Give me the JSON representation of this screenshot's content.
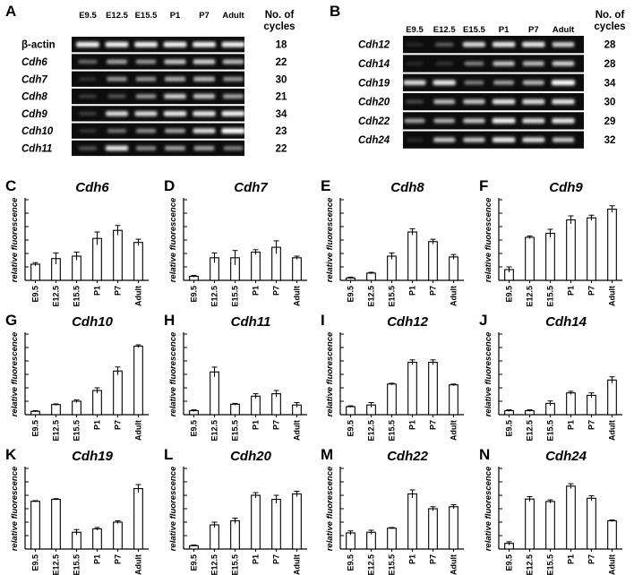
{
  "gels": [
    {
      "panel": "A",
      "lanes": [
        "E9.5",
        "E12.5",
        "E15.5",
        "P1",
        "P7",
        "Adult"
      ],
      "cycles_header": [
        "No. of",
        "cycles"
      ],
      "rows": [
        {
          "gene": "β-actin",
          "italic": false,
          "cycles": "18",
          "intensity": [
            0.95,
            0.95,
            0.95,
            0.95,
            0.95,
            0.95
          ]
        },
        {
          "gene": "Cdh6",
          "italic": true,
          "cycles": "22",
          "intensity": [
            0.35,
            0.6,
            0.55,
            0.75,
            0.8,
            0.7
          ]
        },
        {
          "gene": "Cdh7",
          "italic": true,
          "cycles": "30",
          "intensity": [
            0.1,
            0.55,
            0.55,
            0.65,
            0.7,
            0.55
          ]
        },
        {
          "gene": "Cdh8",
          "italic": true,
          "cycles": "21",
          "intensity": [
            0.15,
            0.25,
            0.55,
            0.8,
            0.75,
            0.6
          ]
        },
        {
          "gene": "Cdh9",
          "italic": true,
          "cycles": "34",
          "intensity": [
            0.15,
            0.85,
            0.85,
            0.9,
            0.9,
            0.95
          ]
        },
        {
          "gene": "Cdh10",
          "italic": true,
          "cycles": "23",
          "intensity": [
            0.1,
            0.4,
            0.5,
            0.6,
            0.85,
            1.0
          ]
        },
        {
          "gene": "Cdh11",
          "italic": true,
          "cycles": "22",
          "intensity": [
            0.25,
            0.9,
            0.5,
            0.6,
            0.6,
            0.45
          ]
        }
      ]
    },
    {
      "panel": "B",
      "lanes": [
        "E9.5",
        "E12.5",
        "E15.5",
        "P1",
        "P7",
        "Adult"
      ],
      "cycles_header": [
        "No. of",
        "cycles"
      ],
      "rows": [
        {
          "gene": "Cdh12",
          "italic": true,
          "cycles": "28",
          "intensity": [
            0.05,
            0.3,
            0.85,
            0.9,
            0.9,
            0.8
          ]
        },
        {
          "gene": "Cdh14",
          "italic": true,
          "cycles": "28",
          "intensity": [
            0.05,
            0.1,
            0.45,
            0.75,
            0.7,
            0.8
          ]
        },
        {
          "gene": "Cdh19",
          "italic": true,
          "cycles": "34",
          "intensity": [
            0.85,
            0.9,
            0.45,
            0.6,
            0.7,
            1.0
          ]
        },
        {
          "gene": "Cdh20",
          "italic": true,
          "cycles": "30",
          "intensity": [
            0.2,
            0.7,
            0.75,
            0.9,
            0.85,
            0.9
          ]
        },
        {
          "gene": "Cdh22",
          "italic": true,
          "cycles": "29",
          "intensity": [
            0.6,
            0.65,
            0.75,
            0.95,
            0.85,
            0.9
          ]
        },
        {
          "gene": "Cdh24",
          "italic": true,
          "cycles": "32",
          "intensity": [
            0.05,
            0.75,
            0.75,
            0.9,
            0.85,
            0.75
          ]
        }
      ]
    }
  ],
  "chart_data": [
    {
      "panel": "C",
      "type": "bar",
      "title": "Cdh6",
      "ylabel": "relative fluorescence",
      "categories": [
        "E9.5",
        "E12.5",
        "E15.5",
        "P1",
        "P7",
        "Adult"
      ],
      "values": [
        0.2,
        0.27,
        0.3,
        0.52,
        0.62,
        0.47
      ],
      "errors": [
        0.02,
        0.07,
        0.05,
        0.08,
        0.06,
        0.04
      ],
      "ylim": [
        0,
        1
      ]
    },
    {
      "panel": "D",
      "type": "bar",
      "title": "Cdh7",
      "ylabel": "relative fluorescence",
      "categories": [
        "E9.5",
        "E12.5",
        "E15.5",
        "P1",
        "P7",
        "Adult"
      ],
      "values": [
        0.05,
        0.28,
        0.28,
        0.35,
        0.41,
        0.28
      ],
      "errors": [
        0.01,
        0.06,
        0.09,
        0.03,
        0.08,
        0.02
      ],
      "ylim": [
        0,
        1
      ]
    },
    {
      "panel": "E",
      "type": "bar",
      "title": "Cdh8",
      "ylabel": "relative fluorescence",
      "categories": [
        "E9.5",
        "E12.5",
        "E15.5",
        "P1",
        "P7",
        "Adult"
      ],
      "values": [
        0.03,
        0.09,
        0.3,
        0.6,
        0.48,
        0.29
      ],
      "errors": [
        0.01,
        0.01,
        0.04,
        0.04,
        0.03,
        0.03
      ],
      "ylim": [
        0,
        1
      ]
    },
    {
      "panel": "F",
      "type": "bar",
      "title": "Cdh9",
      "ylabel": "relative fluorescence",
      "categories": [
        "E9.5",
        "E12.5",
        "E15.5",
        "P1",
        "P7",
        "Adult"
      ],
      "values": [
        0.16,
        0.64,
        0.7,
        0.9,
        0.93,
        1.06
      ],
      "errors": [
        0.04,
        0.02,
        0.06,
        0.06,
        0.04,
        0.05
      ],
      "ylim": [
        0,
        1.2
      ]
    },
    {
      "panel": "G",
      "type": "bar",
      "title": "Cdh10",
      "ylabel": "relative fluorescence",
      "categories": [
        "E9.5",
        "E12.5",
        "E15.5",
        "P1",
        "P7",
        "Adult"
      ],
      "values": [
        0.05,
        0.15,
        0.2,
        0.36,
        0.65,
        1.02
      ],
      "errors": [
        0.01,
        0.01,
        0.02,
        0.04,
        0.06,
        0.02
      ],
      "ylim": [
        0,
        1.2
      ]
    },
    {
      "panel": "H",
      "type": "bar",
      "title": "Cdh11",
      "ylabel": "relative fluorescence",
      "categories": [
        "E9.5",
        "E12.5",
        "E15.5",
        "P1",
        "P7",
        "Adult"
      ],
      "values": [
        0.05,
        0.53,
        0.13,
        0.23,
        0.26,
        0.12
      ],
      "errors": [
        0.01,
        0.06,
        0.01,
        0.03,
        0.04,
        0.03
      ],
      "ylim": [
        0,
        1
      ]
    },
    {
      "panel": "I",
      "type": "bar",
      "title": "Cdh12",
      "ylabel": "relative fluorescence",
      "categories": [
        "E9.5",
        "E12.5",
        "E15.5",
        "P1",
        "P7",
        "Adult"
      ],
      "values": [
        0.1,
        0.12,
        0.38,
        0.65,
        0.65,
        0.37
      ],
      "errors": [
        0.01,
        0.03,
        0.01,
        0.03,
        0.03,
        0.01
      ],
      "ylim": [
        0,
        1
      ]
    },
    {
      "panel": "J",
      "type": "bar",
      "title": "Cdh14",
      "ylabel": "relative fluorescence",
      "categories": [
        "E9.5",
        "E12.5",
        "E15.5",
        "P1",
        "P7",
        "Adult"
      ],
      "values": [
        0.05,
        0.05,
        0.14,
        0.27,
        0.24,
        0.43
      ],
      "errors": [
        0.01,
        0.01,
        0.03,
        0.02,
        0.03,
        0.04
      ],
      "ylim": [
        0,
        1
      ]
    },
    {
      "panel": "K",
      "type": "bar",
      "title": "Cdh19",
      "ylabel": "relative fluorescence",
      "categories": [
        "E9.5",
        "E12.5",
        "E15.5",
        "P1",
        "P7",
        "Adult"
      ],
      "values": [
        0.71,
        0.74,
        0.25,
        0.3,
        0.4,
        0.9
      ],
      "errors": [
        0.01,
        0.01,
        0.04,
        0.02,
        0.02,
        0.06
      ],
      "ylim": [
        0,
        1.2
      ]
    },
    {
      "panel": "L",
      "type": "bar",
      "title": "Cdh20",
      "ylabel": "relative fluorescence",
      "categories": [
        "E9.5",
        "E12.5",
        "E15.5",
        "P1",
        "P7",
        "Adult"
      ],
      "values": [
        0.05,
        0.36,
        0.42,
        0.8,
        0.74,
        0.82
      ],
      "errors": [
        0.01,
        0.04,
        0.04,
        0.04,
        0.06,
        0.04
      ],
      "ylim": [
        0,
        1.2
      ]
    },
    {
      "panel": "M",
      "type": "bar",
      "title": "Cdh22",
      "ylabel": "relative fluorescence",
      "categories": [
        "E9.5",
        "E12.5",
        "E15.5",
        "P1",
        "P7",
        "Adult"
      ],
      "values": [
        0.24,
        0.25,
        0.31,
        0.82,
        0.6,
        0.63
      ],
      "errors": [
        0.03,
        0.03,
        0.01,
        0.06,
        0.03,
        0.03
      ],
      "ylim": [
        0,
        1.2
      ]
    },
    {
      "panel": "N",
      "type": "bar",
      "title": "Cdh24",
      "ylabel": "relative fluorescence",
      "categories": [
        "E9.5",
        "E12.5",
        "E15.5",
        "P1",
        "P7",
        "Adult"
      ],
      "values": [
        0.07,
        0.62,
        0.59,
        0.78,
        0.63,
        0.35
      ],
      "errors": [
        0.02,
        0.03,
        0.02,
        0.03,
        0.03,
        0.01
      ],
      "ylim": [
        0,
        1
      ]
    }
  ]
}
